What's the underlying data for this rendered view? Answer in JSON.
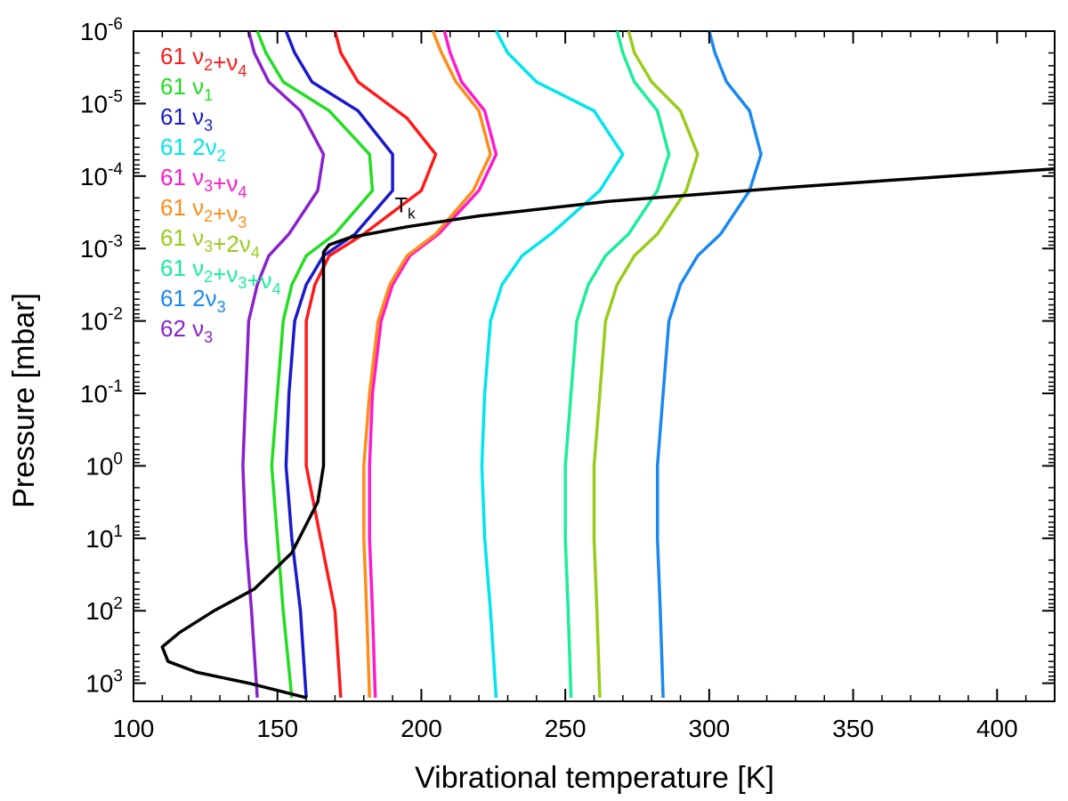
{
  "chart_data": {
    "type": "line",
    "title": "",
    "xlabel": "Vibrational temperature [K]",
    "ylabel": "Pressure [mbar]",
    "xlim": [
      100,
      420
    ],
    "ylim_log10": [
      3.25,
      -6
    ],
    "yscale": "log",
    "x_ticks": [
      {
        "value": 100,
        "label": "100"
      },
      {
        "value": 150,
        "label": "150"
      },
      {
        "value": 200,
        "label": "200"
      },
      {
        "value": 250,
        "label": "250"
      },
      {
        "value": 300,
        "label": "300"
      },
      {
        "value": 350,
        "label": "350"
      },
      {
        "value": 400,
        "label": "400"
      }
    ],
    "y_ticks": [
      {
        "exp": -6,
        "base": "10",
        "power": "-6"
      },
      {
        "exp": -5,
        "base": "10",
        "power": "-5"
      },
      {
        "exp": -4,
        "base": "10",
        "power": "-4"
      },
      {
        "exp": -3,
        "base": "10",
        "power": "-3"
      },
      {
        "exp": -2,
        "base": "10",
        "power": "-2"
      },
      {
        "exp": -1,
        "base": "10",
        "power": "-1"
      },
      {
        "exp": 0,
        "base": "10",
        "power": "0"
      },
      {
        "exp": 1,
        "base": "10",
        "power": "1"
      },
      {
        "exp": 2,
        "base": "10",
        "power": "2"
      },
      {
        "exp": 3,
        "base": "10",
        "power": "3"
      }
    ],
    "annotation": {
      "text": "T",
      "subscript": "k",
      "x": 200,
      "y_log10": -3.4
    },
    "legend_position": "top-left",
    "series": [
      {
        "name": "61 ν2+ν4",
        "iso": "61",
        "mode": [
          [
            "ν",
            "2"
          ],
          [
            "+ν",
            "4"
          ]
        ],
        "color": "#ff1a1a",
        "points": [
          [
            170,
            -6
          ],
          [
            172,
            -5.7
          ],
          [
            178,
            -5.3
          ],
          [
            195,
            -4.8
          ],
          [
            205,
            -4.3
          ],
          [
            200,
            -3.8
          ],
          [
            180,
            -3.2
          ],
          [
            168,
            -2.9
          ],
          [
            163,
            -2.5
          ],
          [
            160,
            -2
          ],
          [
            160,
            -1
          ],
          [
            160,
            0
          ],
          [
            165,
            1
          ],
          [
            170,
            2
          ],
          [
            172,
            3.2
          ]
        ]
      },
      {
        "name": "61 ν1",
        "iso": "61",
        "mode": [
          [
            "ν",
            "1"
          ]
        ],
        "color": "#22dd22",
        "points": [
          [
            143,
            -6
          ],
          [
            146,
            -5.7
          ],
          [
            152,
            -5.3
          ],
          [
            168,
            -4.9
          ],
          [
            182,
            -4.3
          ],
          [
            183,
            -3.8
          ],
          [
            170,
            -3.2
          ],
          [
            160,
            -2.9
          ],
          [
            155,
            -2.5
          ],
          [
            152,
            -2
          ],
          [
            150,
            -1
          ],
          [
            148,
            0
          ],
          [
            150,
            1
          ],
          [
            152,
            2
          ],
          [
            155,
            3.2
          ]
        ]
      },
      {
        "name": "61 ν3",
        "iso": "61",
        "mode": [
          [
            "ν",
            "3"
          ]
        ],
        "color": "#1a1acc",
        "points": [
          [
            153,
            -6
          ],
          [
            156,
            -5.7
          ],
          [
            162,
            -5.3
          ],
          [
            178,
            -4.9
          ],
          [
            190,
            -4.3
          ],
          [
            190,
            -3.8
          ],
          [
            177,
            -3.2
          ],
          [
            166,
            -2.9
          ],
          [
            160,
            -2.5
          ],
          [
            156,
            -2
          ],
          [
            154,
            -1
          ],
          [
            153,
            0
          ],
          [
            155,
            1
          ],
          [
            158,
            2
          ],
          [
            160,
            3.2
          ]
        ]
      },
      {
        "name": "61 2ν2",
        "iso": "61",
        "mode": [
          [
            "2ν",
            "2"
          ]
        ],
        "color": "#00e5ee",
        "points": [
          [
            226,
            -6
          ],
          [
            230,
            -5.7
          ],
          [
            240,
            -5.3
          ],
          [
            260,
            -4.9
          ],
          [
            270,
            -4.3
          ],
          [
            262,
            -3.8
          ],
          [
            245,
            -3.2
          ],
          [
            235,
            -2.9
          ],
          [
            228,
            -2.5
          ],
          [
            224,
            -2
          ],
          [
            222,
            -1
          ],
          [
            221,
            0
          ],
          [
            222,
            1
          ],
          [
            224,
            2
          ],
          [
            226,
            3.2
          ]
        ]
      },
      {
        "name": "61 ν3+ν4",
        "iso": "61",
        "mode": [
          [
            "ν",
            "3"
          ],
          [
            "+ν",
            "4"
          ]
        ],
        "color": "#ff1acc",
        "points": [
          [
            208,
            -6
          ],
          [
            210,
            -5.7
          ],
          [
            214,
            -5.3
          ],
          [
            222,
            -4.9
          ],
          [
            226,
            -4.3
          ],
          [
            220,
            -3.8
          ],
          [
            206,
            -3.2
          ],
          [
            196,
            -2.9
          ],
          [
            190,
            -2.5
          ],
          [
            186,
            -2
          ],
          [
            183,
            -1
          ],
          [
            182,
            0
          ],
          [
            182,
            1
          ],
          [
            183,
            2
          ],
          [
            184,
            3.2
          ]
        ]
      },
      {
        "name": "61 ν2+ν3",
        "iso": "61",
        "mode": [
          [
            "ν",
            "2"
          ],
          [
            "+ν",
            "3"
          ]
        ],
        "color": "#ff8c1a",
        "points": [
          [
            204,
            -6
          ],
          [
            207,
            -5.7
          ],
          [
            212,
            -5.3
          ],
          [
            220,
            -4.9
          ],
          [
            224,
            -4.3
          ],
          [
            218,
            -3.8
          ],
          [
            205,
            -3.2
          ],
          [
            195,
            -2.9
          ],
          [
            189,
            -2.5
          ],
          [
            185,
            -2
          ],
          [
            182,
            -1
          ],
          [
            180,
            0
          ],
          [
            180,
            1
          ],
          [
            181,
            2
          ],
          [
            182,
            3.2
          ]
        ]
      },
      {
        "name": "61 ν3+2ν4",
        "iso": "61",
        "mode": [
          [
            "ν",
            "3"
          ],
          [
            "+2ν",
            "4"
          ]
        ],
        "color": "#99cc1a",
        "points": [
          [
            272,
            -6
          ],
          [
            274,
            -5.7
          ],
          [
            280,
            -5.3
          ],
          [
            290,
            -4.9
          ],
          [
            296,
            -4.3
          ],
          [
            292,
            -3.8
          ],
          [
            282,
            -3.2
          ],
          [
            274,
            -2.9
          ],
          [
            268,
            -2.5
          ],
          [
            264,
            -2
          ],
          [
            262,
            -1
          ],
          [
            260,
            0
          ],
          [
            260,
            1
          ],
          [
            261,
            2
          ],
          [
            262,
            3.2
          ]
        ]
      },
      {
        "name": "61 ν2+ν3+ν4",
        "iso": "61",
        "mode": [
          [
            "ν",
            "2"
          ],
          [
            "+ν",
            "3"
          ],
          [
            "+ν",
            "4"
          ]
        ],
        "color": "#1aee99",
        "points": [
          [
            268,
            -6
          ],
          [
            270,
            -5.7
          ],
          [
            274,
            -5.3
          ],
          [
            282,
            -4.9
          ],
          [
            286,
            -4.3
          ],
          [
            282,
            -3.8
          ],
          [
            272,
            -3.2
          ],
          [
            264,
            -2.9
          ],
          [
            258,
            -2.5
          ],
          [
            254,
            -2
          ],
          [
            252,
            -1
          ],
          [
            250,
            0
          ],
          [
            250,
            1
          ],
          [
            251,
            2
          ],
          [
            252,
            3.2
          ]
        ]
      },
      {
        "name": "61 2ν3",
        "iso": "61",
        "mode": [
          [
            "2ν",
            "3"
          ]
        ],
        "color": "#1a88ee",
        "points": [
          [
            300,
            -6
          ],
          [
            302,
            -5.7
          ],
          [
            306,
            -5.3
          ],
          [
            314,
            -4.9
          ],
          [
            318,
            -4.3
          ],
          [
            314,
            -3.8
          ],
          [
            304,
            -3.2
          ],
          [
            296,
            -2.9
          ],
          [
            290,
            -2.5
          ],
          [
            286,
            -2
          ],
          [
            284,
            -1
          ],
          [
            282,
            0
          ],
          [
            282,
            1
          ],
          [
            283,
            2
          ],
          [
            284,
            3.2
          ]
        ]
      },
      {
        "name": "62 ν3",
        "iso": "62",
        "mode": [
          [
            "ν",
            "3"
          ]
        ],
        "color": "#8a22cc",
        "points": [
          [
            140,
            -6
          ],
          [
            142,
            -5.7
          ],
          [
            147,
            -5.3
          ],
          [
            158,
            -4.9
          ],
          [
            166,
            -4.3
          ],
          [
            164,
            -3.8
          ],
          [
            154,
            -3.2
          ],
          [
            147,
            -2.9
          ],
          [
            143,
            -2.5
          ],
          [
            140,
            -2
          ],
          [
            139,
            -1
          ],
          [
            138,
            0
          ],
          [
            139,
            1
          ],
          [
            141,
            2
          ],
          [
            143,
            3.2
          ]
        ]
      }
    ],
    "black_curve": {
      "name": "Tk",
      "color": "#000000",
      "points": [
        [
          420,
          -4.1
        ],
        [
          330,
          -3.85
        ],
        [
          265,
          -3.65
        ],
        [
          220,
          -3.45
        ],
        [
          195,
          -3.3
        ],
        [
          175,
          -3.15
        ],
        [
          168,
          -3.05
        ],
        [
          166,
          -2.95
        ],
        [
          166,
          -2.7
        ],
        [
          166,
          -2
        ],
        [
          166,
          -1
        ],
        [
          166,
          0
        ],
        [
          164,
          0.5
        ],
        [
          155,
          1.2
        ],
        [
          142,
          1.7
        ],
        [
          128,
          2.0
        ],
        [
          116,
          2.3
        ],
        [
          110,
          2.5
        ],
        [
          112,
          2.7
        ],
        [
          122,
          2.85
        ],
        [
          140,
          3.0
        ],
        [
          160,
          3.2
        ]
      ]
    }
  }
}
